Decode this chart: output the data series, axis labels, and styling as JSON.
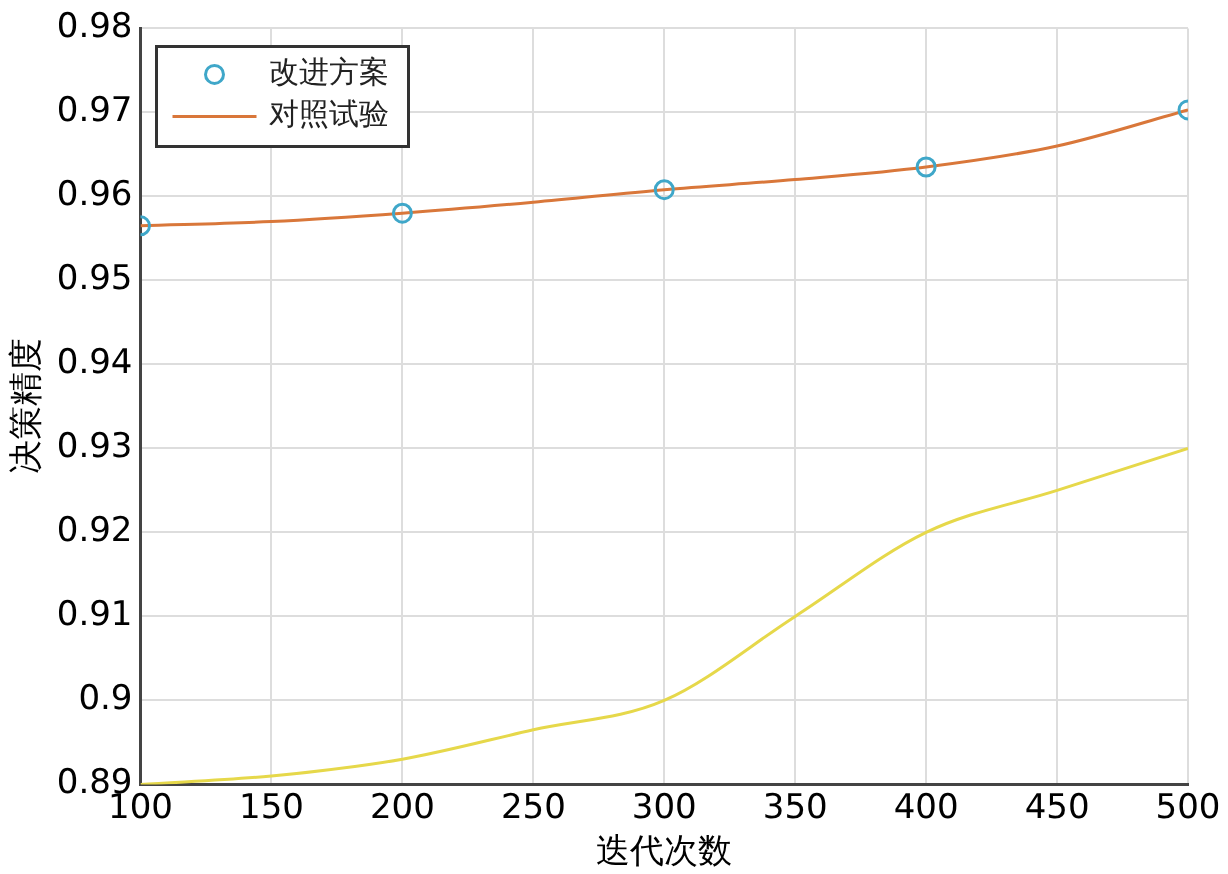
{
  "chart_data": {
    "type": "line",
    "xlabel": "迭代次数",
    "ylabel": "决策精度",
    "xlim": [
      100,
      500
    ],
    "xticks": [
      100,
      150,
      200,
      250,
      300,
      350,
      400,
      450,
      500
    ],
    "ylim": [
      0.89,
      0.98
    ],
    "yticks": [
      0.89,
      0.9,
      0.91,
      0.92,
      0.93,
      0.94,
      0.95,
      0.96,
      0.97,
      0.98
    ],
    "grid": true,
    "legend": "top left",
    "series": [
      {
        "name": "改进方案",
        "type": "scatter",
        "marker": "circle",
        "color": "#3fa7c9",
        "x": [
          100,
          200,
          300,
          400,
          500
        ],
        "values": [
          0.9565,
          0.958,
          0.9608,
          0.9635,
          0.9703
        ]
      },
      {
        "name": "对照试验",
        "type": "line",
        "marker": "none",
        "color": "#d9773a",
        "x": [
          100,
          150,
          200,
          250,
          300,
          350,
          400,
          450,
          500
        ],
        "values": [
          0.9565,
          0.957,
          0.958,
          0.9593,
          0.9608,
          0.962,
          0.9635,
          0.966,
          0.9703
        ]
      },
      {
        "type": "line",
        "marker": "none",
        "color": "#e6d84a",
        "x": [
          100,
          150,
          200,
          250,
          300,
          350,
          400,
          450,
          500
        ],
        "values": [
          0.89,
          0.891,
          0.893,
          0.8965,
          0.9,
          0.91,
          0.92,
          0.925,
          0.93
        ]
      }
    ]
  }
}
